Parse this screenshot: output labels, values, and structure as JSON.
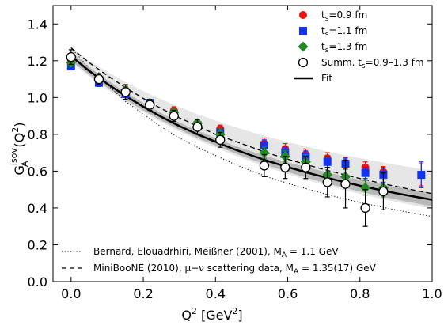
{
  "chart_data": {
    "type": "scatter",
    "title": "",
    "xlabel": "Q² [GeV²]",
    "ylabel": "G_A^isov(Q²)",
    "xlim": [
      -0.05,
      1.0
    ],
    "ylim": [
      0.0,
      1.5
    ],
    "xticks": [
      0.0,
      0.2,
      0.4,
      0.6,
      0.8,
      1.0
    ],
    "xtick_labels": [
      "0.0",
      "0.2",
      "0.4",
      "0.6",
      "0.8",
      "1.0"
    ],
    "yticks": [
      0.0,
      0.2,
      0.4,
      0.6,
      0.8,
      1.0,
      1.2,
      1.4
    ],
    "ytick_labels": [
      "0.0",
      "0.2",
      "0.4",
      "0.6",
      "0.8",
      "1.0",
      "1.2",
      "1.4"
    ],
    "grid": false,
    "legend_position": "top-right",
    "series": [
      {
        "name": "t_s=0.9 fm",
        "label_main": "t",
        "label_sub": "s",
        "label_rest": "=0.9 fm",
        "marker": "circle",
        "color": "#ee1111",
        "x": [
          0.0,
          0.077,
          0.151,
          0.218,
          0.285,
          0.35,
          0.413,
          0.535,
          0.593,
          0.65,
          0.71,
          0.76,
          0.815,
          0.865,
          0.97
        ],
        "y": [
          1.2,
          1.1,
          1.04,
          0.97,
          0.93,
          0.86,
          0.83,
          0.75,
          0.72,
          0.69,
          0.67,
          0.645,
          0.62,
          0.595,
          0.58
        ],
        "err": [
          0.02,
          0.02,
          0.02,
          0.02,
          0.02,
          0.02,
          0.02,
          0.03,
          0.03,
          0.03,
          0.03,
          0.03,
          0.03,
          0.03,
          0.06
        ]
      },
      {
        "name": "t_s=1.1 fm",
        "label_main": "t",
        "label_sub": "s",
        "label_rest": "=1.1 fm",
        "marker": "square",
        "color": "#1133ee",
        "x": [
          0.0,
          0.077,
          0.151,
          0.218,
          0.285,
          0.35,
          0.413,
          0.535,
          0.593,
          0.65,
          0.71,
          0.76,
          0.815,
          0.865,
          0.97
        ],
        "y": [
          1.17,
          1.08,
          1.02,
          0.97,
          0.91,
          0.85,
          0.81,
          0.74,
          0.7,
          0.68,
          0.65,
          0.64,
          0.59,
          0.58,
          0.58
        ],
        "err": [
          0.02,
          0.02,
          0.02,
          0.02,
          0.02,
          0.02,
          0.02,
          0.03,
          0.03,
          0.03,
          0.03,
          0.03,
          0.03,
          0.04,
          0.07
        ]
      },
      {
        "name": "t_s=1.3 fm",
        "label_main": "t",
        "label_sub": "s",
        "label_rest": "=1.3 fm",
        "marker": "diamond",
        "color": "#228822",
        "x": [
          0.0,
          0.077,
          0.151,
          0.218,
          0.285,
          0.35,
          0.413,
          0.535,
          0.593,
          0.65,
          0.71,
          0.76,
          0.815,
          0.865
        ],
        "y": [
          1.19,
          1.11,
          1.04,
          0.97,
          0.92,
          0.86,
          0.8,
          0.7,
          0.68,
          0.65,
          0.58,
          0.57,
          0.51,
          0.51
        ],
        "err": [
          0.02,
          0.02,
          0.02,
          0.02,
          0.02,
          0.02,
          0.03,
          0.03,
          0.03,
          0.04,
          0.04,
          0.04,
          0.04,
          0.05
        ]
      },
      {
        "name": "Summ. t_s=0.9–1.3 fm",
        "label_main": "Summ. t",
        "label_sub": "s",
        "label_rest": "=0.9–1.3 fm",
        "marker": "open-circle",
        "color": "#000000",
        "x": [
          0.0,
          0.077,
          0.151,
          0.218,
          0.285,
          0.35,
          0.413,
          0.535,
          0.593,
          0.65,
          0.71,
          0.76,
          0.815,
          0.865
        ],
        "y": [
          1.22,
          1.1,
          1.03,
          0.96,
          0.9,
          0.84,
          0.77,
          0.63,
          0.62,
          0.62,
          0.54,
          0.53,
          0.4,
          0.49
        ],
        "err": [
          0.04,
          0.03,
          0.04,
          0.03,
          0.03,
          0.04,
          0.04,
          0.06,
          0.06,
          0.06,
          0.08,
          0.13,
          0.1,
          0.1
        ]
      }
    ],
    "fit": {
      "name": "Fit",
      "x": [
        0.0,
        0.05,
        0.1,
        0.15,
        0.2,
        0.25,
        0.3,
        0.35,
        0.4,
        0.45,
        0.5,
        0.55,
        0.6,
        0.65,
        0.7,
        0.75,
        0.8,
        0.85,
        0.9,
        0.95,
        1.0
      ],
      "y": [
        1.225,
        1.145,
        1.075,
        1.01,
        0.95,
        0.895,
        0.845,
        0.8,
        0.76,
        0.72,
        0.685,
        0.652,
        0.622,
        0.594,
        0.568,
        0.544,
        0.521,
        0.5,
        0.48,
        0.462,
        0.445
      ],
      "band_inner_lower": [
        1.2,
        1.125,
        1.055,
        0.99,
        0.93,
        0.875,
        0.825,
        0.78,
        0.74,
        0.7,
        0.663,
        0.628,
        0.596,
        0.566,
        0.538,
        0.513,
        0.489,
        0.467,
        0.446,
        0.427,
        0.409
      ],
      "band_inner_upper": [
        1.25,
        1.165,
        1.095,
        1.03,
        0.97,
        0.915,
        0.865,
        0.82,
        0.78,
        0.74,
        0.707,
        0.676,
        0.648,
        0.622,
        0.598,
        0.575,
        0.553,
        0.533,
        0.514,
        0.497,
        0.481
      ],
      "band_outer_lower": [
        1.19,
        1.115,
        1.045,
        0.98,
        0.92,
        0.865,
        0.815,
        0.77,
        0.728,
        0.688,
        0.651,
        0.616,
        0.584,
        0.554,
        0.526,
        0.5,
        0.476,
        0.454,
        0.433,
        0.414,
        0.396
      ],
      "band_outer_upper": [
        1.27,
        1.2,
        1.14,
        1.085,
        1.035,
        0.99,
        0.948,
        0.91,
        0.875,
        0.842,
        0.812,
        0.784,
        0.758,
        0.734,
        0.711,
        0.69,
        0.67,
        0.652,
        0.634,
        0.618,
        0.602
      ]
    },
    "references": [
      {
        "name": "Bernard, Elouadrhiri, Meißner (2001), M_A = 1.1 GeV",
        "text_before": "Bernard, Elouadrhiri, Meißner (2001), M",
        "text_sub": "A",
        "text_after": " =   1.1 GeV",
        "style": "dotted",
        "x": [
          0.0,
          0.05,
          0.1,
          0.15,
          0.2,
          0.25,
          0.3,
          0.35,
          0.4,
          0.45,
          0.5,
          0.55,
          0.6,
          0.65,
          0.7,
          0.75,
          0.8,
          0.85,
          0.9,
          0.95,
          1.0
        ],
        "y": [
          1.27,
          1.16,
          1.07,
          0.98,
          0.91,
          0.84,
          0.78,
          0.73,
          0.685,
          0.64,
          0.6,
          0.565,
          0.534,
          0.505,
          0.478,
          0.453,
          0.43,
          0.409,
          0.389,
          0.371,
          0.354
        ]
      },
      {
        "name": "MiniBooNE (2010), μ−ν scattering data, M_A = 1.35(17) GeV",
        "text_before": "MiniBooNE (2010), μ−ν scattering data, M",
        "text_sub": "A",
        "text_after": " = 1.35(17) GeV",
        "style": "dashed",
        "x": [
          0.0,
          0.05,
          0.1,
          0.15,
          0.2,
          0.25,
          0.3,
          0.35,
          0.4,
          0.45,
          0.5,
          0.55,
          0.6,
          0.65,
          0.7,
          0.75,
          0.8,
          0.85,
          0.9,
          0.95,
          1.0
        ],
        "y": [
          1.27,
          1.19,
          1.12,
          1.055,
          0.995,
          0.94,
          0.89,
          0.845,
          0.8,
          0.765,
          0.73,
          0.695,
          0.665,
          0.636,
          0.609,
          0.584,
          0.56,
          0.538,
          0.517,
          0.497,
          0.478
        ]
      }
    ],
    "ylabel_parts": {
      "main": "G",
      "sub": "A",
      "sup": "isov",
      "rest": "(Q",
      "rest_sup": "2",
      "rest_end": ")"
    },
    "xlabel_parts": {
      "main": "Q",
      "sup": "2",
      "rest": " [GeV",
      "rest_sup": "2",
      "rest_end": "]"
    },
    "colors": {
      "band_outer": "#e6e6e6",
      "band_inner": "#b8b8b8",
      "fit_line": "#000000"
    }
  }
}
